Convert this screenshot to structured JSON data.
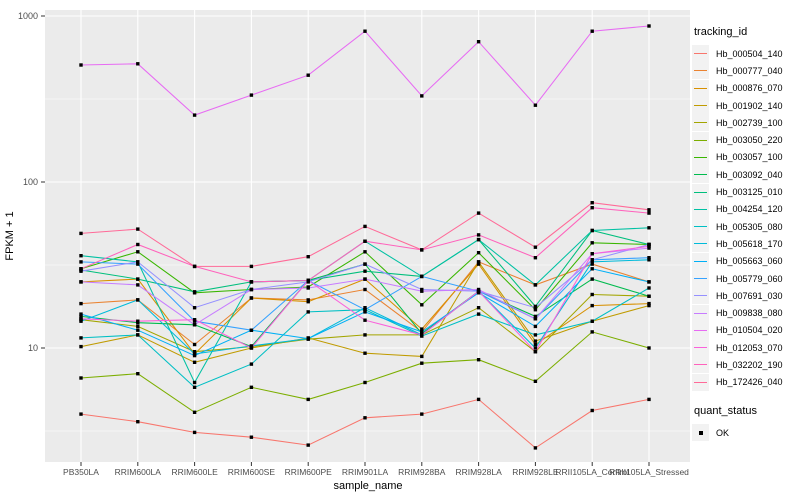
{
  "chart_data": {
    "type": "line",
    "title": "",
    "xlabel": "sample_name",
    "ylabel": "FPKM + 1",
    "y_scale": "log10",
    "y_ticks": [
      10,
      100,
      1000
    ],
    "y_tick_labels": [
      "10",
      "100",
      "1000"
    ],
    "y_minor_breaks": [
      3.162,
      31.62,
      316.2
    ],
    "ylim": [
      2.06,
      1090
    ],
    "grid": "on",
    "legend_position": "right",
    "categories": [
      "PB350LA",
      "RRIM600LA",
      "RRIM600LE",
      "RRIM600SE",
      "RRIM600PE",
      "RRIM901LA",
      "RRIM928BA",
      "RRIM928LA",
      "RRIM928LE",
      "RRII105LA_Control",
      "RRII105LA_Stressed"
    ],
    "legend": {
      "tracking_title": "tracking_id",
      "quant_title": "quant_status",
      "quant_value": "OK"
    },
    "colors": {
      "panel_bg": "#EBEBEB",
      "grid": "#FFFFFF",
      "point": "#000000",
      "tick_text": "#4D4D4D",
      "axis_tick": "#333333"
    },
    "point_shape": "filled-square",
    "series": [
      {
        "name": "Hb_000504_140",
        "color": "#F8766D",
        "values": [
          4.0,
          3.6,
          3.1,
          2.9,
          2.6,
          3.8,
          4.0,
          4.9,
          2.5,
          4.2,
          4.9
        ]
      },
      {
        "name": "Hb_000777_040",
        "color": "#EA8331",
        "values": [
          18.5,
          19.5,
          10.5,
          20,
          19.5,
          22.5,
          12.5,
          33,
          24,
          32,
          25
        ]
      },
      {
        "name": "Hb_000876_070",
        "color": "#D89000",
        "values": [
          25,
          26,
          9.2,
          20,
          19,
          26,
          13,
          32,
          10.5,
          18,
          18.5
        ]
      },
      {
        "name": "Hb_001902_140",
        "color": "#C09B00",
        "values": [
          10.2,
          12,
          8.2,
          10,
          11.5,
          9.3,
          8.9,
          33,
          11,
          14.5,
          18
        ]
      },
      {
        "name": "Hb_002739_100",
        "color": "#A3A500",
        "values": [
          14.8,
          13.5,
          9.5,
          10.2,
          11.3,
          12,
          12,
          17.5,
          9.5,
          21,
          20.5
        ]
      },
      {
        "name": "Hb_003050_220",
        "color": "#7CAE00",
        "values": [
          6.6,
          7.0,
          4.1,
          5.8,
          4.9,
          6.2,
          8.1,
          8.5,
          6.3,
          12.5,
          10
        ]
      },
      {
        "name": "Hb_003057_100",
        "color": "#39B600",
        "values": [
          30,
          38,
          21.5,
          22.5,
          23.3,
          38,
          18.2,
          37.5,
          17,
          43,
          42
        ]
      },
      {
        "name": "Hb_003092_040",
        "color": "#00BB4E",
        "values": [
          15.5,
          14.2,
          13.8,
          10.2,
          25.5,
          32,
          12.2,
          22,
          15.5,
          26,
          20.5
        ]
      },
      {
        "name": "Hb_003125_010",
        "color": "#00BF7D",
        "values": [
          29.5,
          26,
          21.8,
          25,
          25.5,
          29,
          27,
          45,
          17.8,
          51,
          42
        ]
      },
      {
        "name": "Hb_004254_120",
        "color": "#00C1A3",
        "values": [
          36,
          33,
          6.2,
          25,
          25.5,
          44,
          27,
          45,
          24,
          51,
          53
        ]
      },
      {
        "name": "Hb_005305_080",
        "color": "#00BFC4",
        "values": [
          11.5,
          12,
          5.8,
          8,
          16.5,
          17,
          11.8,
          16,
          12,
          14.5,
          23
        ]
      },
      {
        "name": "Hb_005618_170",
        "color": "#00BBDA",
        "values": [
          14.5,
          19.5,
          9.2,
          10.3,
          11.4,
          17.5,
          12,
          22,
          10,
          33,
          34
        ]
      },
      {
        "name": "Hb_005663_060",
        "color": "#00B0F6",
        "values": [
          16,
          12.8,
          9,
          12.8,
          11.4,
          16.5,
          12.5,
          21.5,
          13.5,
          30,
          25
        ]
      },
      {
        "name": "Hb_005779_060",
        "color": "#35A2FF",
        "values": [
          33,
          32,
          14.5,
          12.8,
          25.5,
          17,
          27,
          22,
          15,
          34,
          35
        ]
      },
      {
        "name": "Hb_007691_030",
        "color": "#9590FF",
        "values": [
          29,
          33,
          17.5,
          22.5,
          25,
          32,
          22.5,
          22,
          17.5,
          34,
          42
        ]
      },
      {
        "name": "Hb_009838_080",
        "color": "#C77CFF",
        "values": [
          25,
          24,
          13.8,
          22.5,
          23,
          26,
          22,
          22.5,
          15,
          37,
          40
        ]
      },
      {
        "name": "Hb_010504_020",
        "color": "#E76BF3",
        "values": [
          507,
          515,
          253,
          334,
          440,
          810,
          330,
          700,
          290,
          810,
          870
        ]
      },
      {
        "name": "Hb_012053_070",
        "color": "#FA62DB",
        "values": [
          15,
          14.5,
          14.8,
          10,
          25.5,
          14.7,
          12,
          22,
          9.5,
          37,
          41
        ]
      },
      {
        "name": "Hb_032202_190",
        "color": "#FF62BC",
        "values": [
          30,
          42,
          31,
          25,
          25.5,
          44,
          39,
          48,
          35,
          70,
          65
        ]
      },
      {
        "name": "Hb_172426_040",
        "color": "#FF6A98",
        "values": [
          49,
          52,
          31,
          31,
          35.5,
          54,
          39,
          65,
          40.5,
          75,
          68
        ]
      }
    ]
  }
}
